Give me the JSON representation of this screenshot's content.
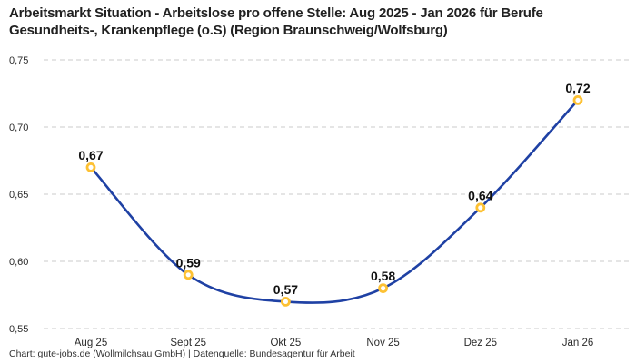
{
  "chart_data": {
    "type": "line",
    "title": "Arbeitsmarkt Situation - Arbeitslose pro offene Stelle: Aug 2025 - Jan 2026 für Berufe Gesundheits-, Krankenpflege (o.S) (Region Braunschweig/Wolfsburg)",
    "categories": [
      "Aug 25",
      "Sept 25",
      "Okt 25",
      "Nov 25",
      "Dez 25",
      "Jan 26"
    ],
    "values": [
      0.67,
      0.59,
      0.57,
      0.58,
      0.64,
      0.72
    ],
    "value_labels": [
      "0,67",
      "0,59",
      "0,57",
      "0,58",
      "0,64",
      "0,72"
    ],
    "y_ticks": [
      {
        "value": 0.75,
        "label": "0,75"
      },
      {
        "value": 0.7,
        "label": "0,70"
      },
      {
        "value": 0.65,
        "label": "0,65"
      },
      {
        "value": 0.6,
        "label": "0,60"
      },
      {
        "value": 0.55,
        "label": "0,55"
      }
    ],
    "ylim": [
      0.55,
      0.75
    ],
    "xlabel": "",
    "ylabel": "",
    "grid": "horizontal-dashed",
    "legend": "none",
    "smooth": true,
    "line_color": "#1f41a4",
    "marker_color": "#fdc133",
    "grid_color": "#cbcbcb",
    "text_color": "#2b2b2b",
    "label_color": "#111111"
  },
  "footer": {
    "credit": "Chart: gute-jobs.de (Wollmilchsau GmbH) | Datenquelle: Bundesagentur für Arbeit"
  }
}
